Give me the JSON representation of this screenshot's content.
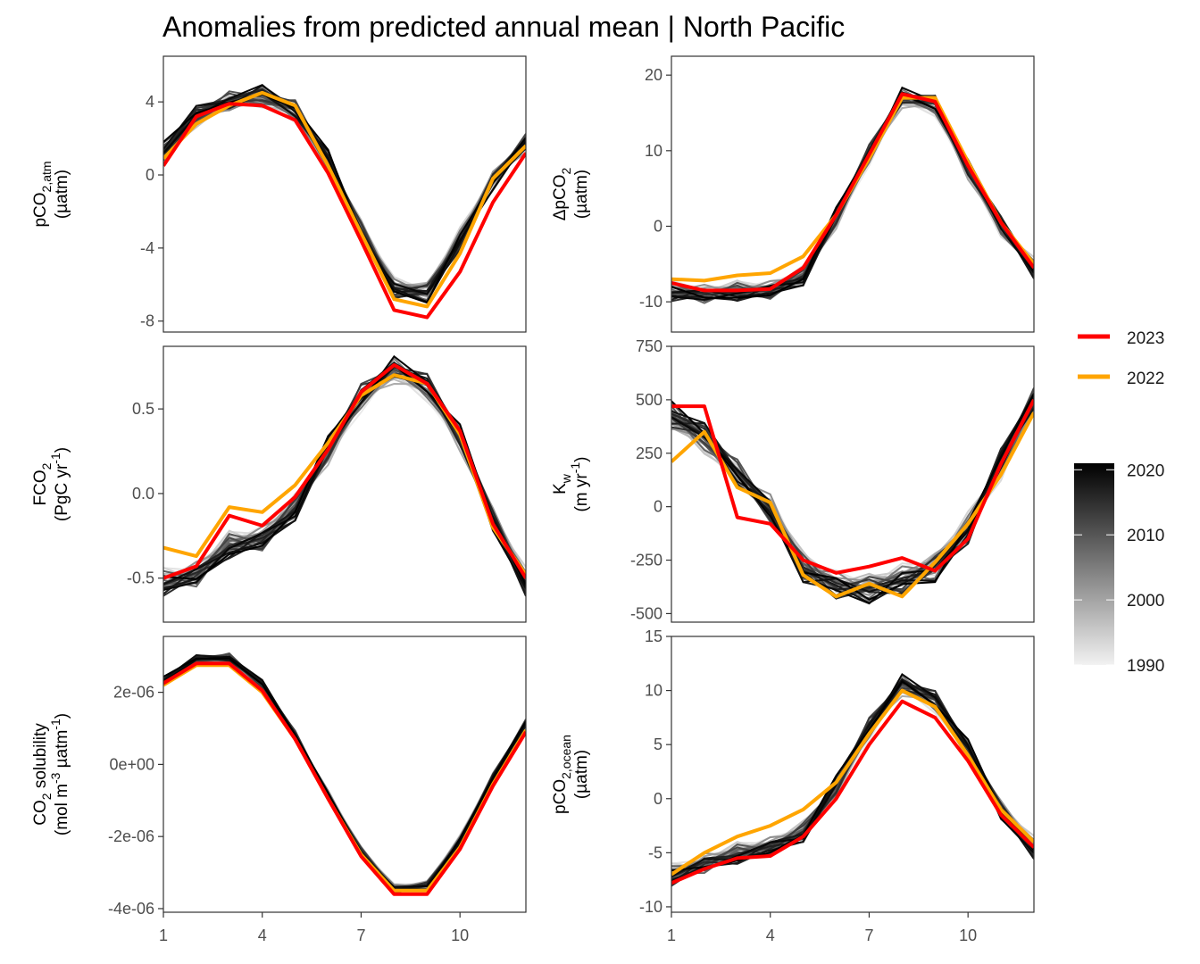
{
  "title": "Anomalies from predicted annual mean | North Pacific",
  "legend": {
    "series": [
      {
        "label": "2023",
        "color": "#ff0000"
      },
      {
        "label": "2022",
        "color": "#ffa500"
      }
    ],
    "colorbar": {
      "ticks": [
        "2020",
        "2010",
        "2000",
        "1990"
      ],
      "range": [
        1990,
        2021
      ],
      "low_color": "#f2f2f2",
      "high_color": "#000000"
    }
  },
  "x_ticks": [
    "1",
    "4",
    "7",
    "10"
  ],
  "chart_data": [
    {
      "type": "line",
      "ylabel": "pCO2,atm (µatm)",
      "ylabel_lines": [
        {
          "main": "pCO",
          "sub": "2,atm"
        },
        {
          "main": "(µatm)"
        }
      ],
      "x": [
        1,
        2,
        3,
        4,
        5,
        6,
        7,
        8,
        9,
        10,
        11,
        12
      ],
      "xlim": [
        1,
        12
      ],
      "ylim": [
        -8.6,
        6.5
      ],
      "y_ticks": [
        4,
        0,
        -4,
        -8
      ],
      "y_tick_labels": [
        "4",
        "0",
        "-4",
        "-8"
      ],
      "show_x_axis": false,
      "series": [
        {
          "name": "2023",
          "values": [
            0.5,
            3.2,
            3.9,
            3.8,
            3.0,
            0.1,
            -3.6,
            -7.4,
            -7.8,
            -5.3,
            -1.5,
            1.2
          ]
        },
        {
          "name": "2022",
          "values": [
            0.9,
            2.8,
            3.8,
            4.5,
            3.8,
            0.5,
            -3.2,
            -6.8,
            -7.2,
            -4.3,
            -0.2,
            1.6
          ]
        }
      ],
      "background": {
        "base": [
          1.2,
          3.2,
          4.0,
          4.3,
          3.5,
          0.7,
          -3.0,
          -6.2,
          -6.4,
          -3.5,
          -0.3,
          1.8
        ],
        "spread": 0.9
      }
    },
    {
      "type": "line",
      "ylabel": "ΔpCO2 (µatm)",
      "ylabel_lines": [
        {
          "main": "ΔpCO",
          "sub": "2"
        },
        {
          "main": "(µatm)"
        }
      ],
      "x": [
        1,
        2,
        3,
        4,
        5,
        6,
        7,
        8,
        9,
        10,
        11,
        12
      ],
      "xlim": [
        1,
        12
      ],
      "ylim": [
        -14,
        22.5
      ],
      "y_ticks": [
        20,
        10,
        0,
        -10
      ],
      "y_tick_labels": [
        "20",
        "10",
        "0",
        "-10"
      ],
      "show_x_axis": false,
      "series": [
        {
          "name": "2023",
          "values": [
            -7.5,
            -8.5,
            -8.5,
            -8.3,
            -5.5,
            1.5,
            9.5,
            17.5,
            16.5,
            8.0,
            0.5,
            -5.5
          ]
        },
        {
          "name": "2022",
          "values": [
            -7.0,
            -7.2,
            -6.5,
            -6.2,
            -4.0,
            1.5,
            9.0,
            17.0,
            17.0,
            8.5,
            0.5,
            -5.0
          ]
        }
      ],
      "background": {
        "base": [
          -8.5,
          -9.0,
          -8.5,
          -8.5,
          -6.5,
          1.0,
          9.5,
          17.0,
          16.0,
          7.5,
          0.0,
          -5.5
        ],
        "spread": 2.0
      }
    },
    {
      "type": "line",
      "ylabel": "FCO2 (PgC yr-1)",
      "ylabel_lines": [
        {
          "main": "FCO",
          "sub": "2"
        },
        {
          "main": "(PgC yr",
          "sup": "-1",
          "tail": ")"
        }
      ],
      "x": [
        1,
        2,
        3,
        4,
        5,
        6,
        7,
        8,
        9,
        10,
        11,
        12
      ],
      "xlim": [
        1,
        12
      ],
      "ylim": [
        -0.76,
        0.87
      ],
      "y_ticks": [
        0.5,
        0.0,
        -0.5
      ],
      "y_tick_labels": [
        "0.5",
        "0.0",
        "-0.5"
      ],
      "show_x_axis": false,
      "series": [
        {
          "name": "2023",
          "values": [
            -0.5,
            -0.43,
            -0.13,
            -0.19,
            -0.02,
            0.26,
            0.6,
            0.76,
            0.65,
            0.37,
            -0.18,
            -0.5
          ]
        },
        {
          "name": "2022",
          "values": [
            -0.32,
            -0.37,
            -0.08,
            -0.11,
            0.05,
            0.3,
            0.58,
            0.7,
            0.65,
            0.35,
            -0.2,
            -0.48
          ]
        }
      ],
      "background": {
        "base": [
          -0.52,
          -0.48,
          -0.3,
          -0.27,
          -0.08,
          0.25,
          0.57,
          0.73,
          0.63,
          0.33,
          -0.15,
          -0.52
        ],
        "spread": 0.12
      }
    },
    {
      "type": "line",
      "ylabel": "Kw (m yr-1)",
      "ylabel_lines": [
        {
          "main": "K",
          "sub": "w"
        },
        {
          "main": "(m yr",
          "sup": "-1",
          "tail": ")"
        }
      ],
      "x": [
        1,
        2,
        3,
        4,
        5,
        6,
        7,
        8,
        9,
        10,
        11,
        12
      ],
      "xlim": [
        1,
        12
      ],
      "ylim": [
        -540,
        750
      ],
      "y_ticks": [
        750,
        500,
        250,
        0,
        -250,
        -500
      ],
      "y_tick_labels": [
        "750",
        "500",
        "250",
        "0",
        "-250",
        "-500"
      ],
      "show_x_axis": false,
      "series": [
        {
          "name": "2023",
          "values": [
            470,
            470,
            -50,
            -80,
            -250,
            -310,
            -280,
            -240,
            -300,
            -150,
            200,
            500
          ]
        },
        {
          "name": "2022",
          "values": [
            210,
            350,
            90,
            20,
            -320,
            -420,
            -360,
            -420,
            -260,
            -80,
            150,
            440
          ]
        }
      ],
      "background": {
        "base": [
          420,
          320,
          150,
          -10,
          -280,
          -370,
          -380,
          -340,
          -280,
          -100,
          200,
          500
        ],
        "spread": 110
      }
    },
    {
      "type": "line",
      "ylabel": "CO2 solubility (mol m-3 µatm-1)",
      "ylabel_lines": [
        {
          "main": "CO",
          "sub": "2",
          "tail": " solubility"
        },
        {
          "main": "(mol m",
          "sup": "-3",
          "tail": " µatm",
          "sup2": "-1",
          "tail2": ")"
        }
      ],
      "x": [
        1,
        2,
        3,
        4,
        5,
        6,
        7,
        8,
        9,
        10,
        11,
        12
      ],
      "xlim": [
        1,
        12
      ],
      "ylim": [
        -4.1e-06,
        3.55e-06
      ],
      "y_ticks": [
        2e-06,
        0,
        -2e-06,
        -4e-06
      ],
      "y_tick_labels": [
        "2e-06",
        "0e+00",
        "-2e-06",
        "-4e-06"
      ],
      "show_x_axis": true,
      "series": [
        {
          "name": "2023",
          "values": [
            2.25e-06,
            2.8e-06,
            2.8e-06,
            2.05e-06,
            7e-07,
            -9.5e-07,
            -2.55e-06,
            -3.6e-06,
            -3.6e-06,
            -2.35e-06,
            -6e-07,
            9e-07
          ]
        },
        {
          "name": "2022",
          "values": [
            2.2e-06,
            2.75e-06,
            2.75e-06,
            2e-06,
            7e-07,
            -9.5e-07,
            -2.5e-06,
            -3.5e-06,
            -3.5e-06,
            -2.3e-06,
            -5.5e-07,
            9.5e-07
          ]
        }
      ],
      "background": {
        "base": [
          2.3e-06,
          2.9e-06,
          2.95e-06,
          2.2e-06,
          8e-07,
          -8.5e-07,
          -2.4e-06,
          -3.45e-06,
          -3.35e-06,
          -2.1e-06,
          -3.5e-07,
          1.15e-06
        ],
        "spread": 2e-07
      }
    },
    {
      "type": "line",
      "ylabel": "pCO2,ocean (µatm)",
      "ylabel_lines": [
        {
          "main": "pCO",
          "sub": "2,ocean"
        },
        {
          "main": "(µatm)"
        }
      ],
      "x": [
        1,
        2,
        3,
        4,
        5,
        6,
        7,
        8,
        9,
        10,
        11,
        12
      ],
      "xlim": [
        1,
        12
      ],
      "ylim": [
        -10.5,
        15
      ],
      "y_ticks": [
        15,
        10,
        5,
        0,
        -5,
        -10
      ],
      "y_tick_labels": [
        "15",
        "10",
        "5",
        "0",
        "-5",
        "-10"
      ],
      "show_x_axis": true,
      "series": [
        {
          "name": "2023",
          "values": [
            -7.8,
            -6.5,
            -5.5,
            -5.3,
            -3.5,
            0.0,
            5.0,
            9.0,
            7.5,
            3.5,
            -1.5,
            -4.5
          ]
        },
        {
          "name": "2022",
          "values": [
            -7.0,
            -5.0,
            -3.5,
            -2.5,
            -1.0,
            1.5,
            6.0,
            10.0,
            8.5,
            4.0,
            -1.0,
            -4.0
          ]
        }
      ],
      "background": {
        "base": [
          -7.0,
          -6.0,
          -5.0,
          -4.5,
          -3.0,
          1.0,
          6.5,
          10.5,
          9.0,
          4.5,
          -1.0,
          -4.5
        ],
        "spread": 1.5
      }
    }
  ]
}
